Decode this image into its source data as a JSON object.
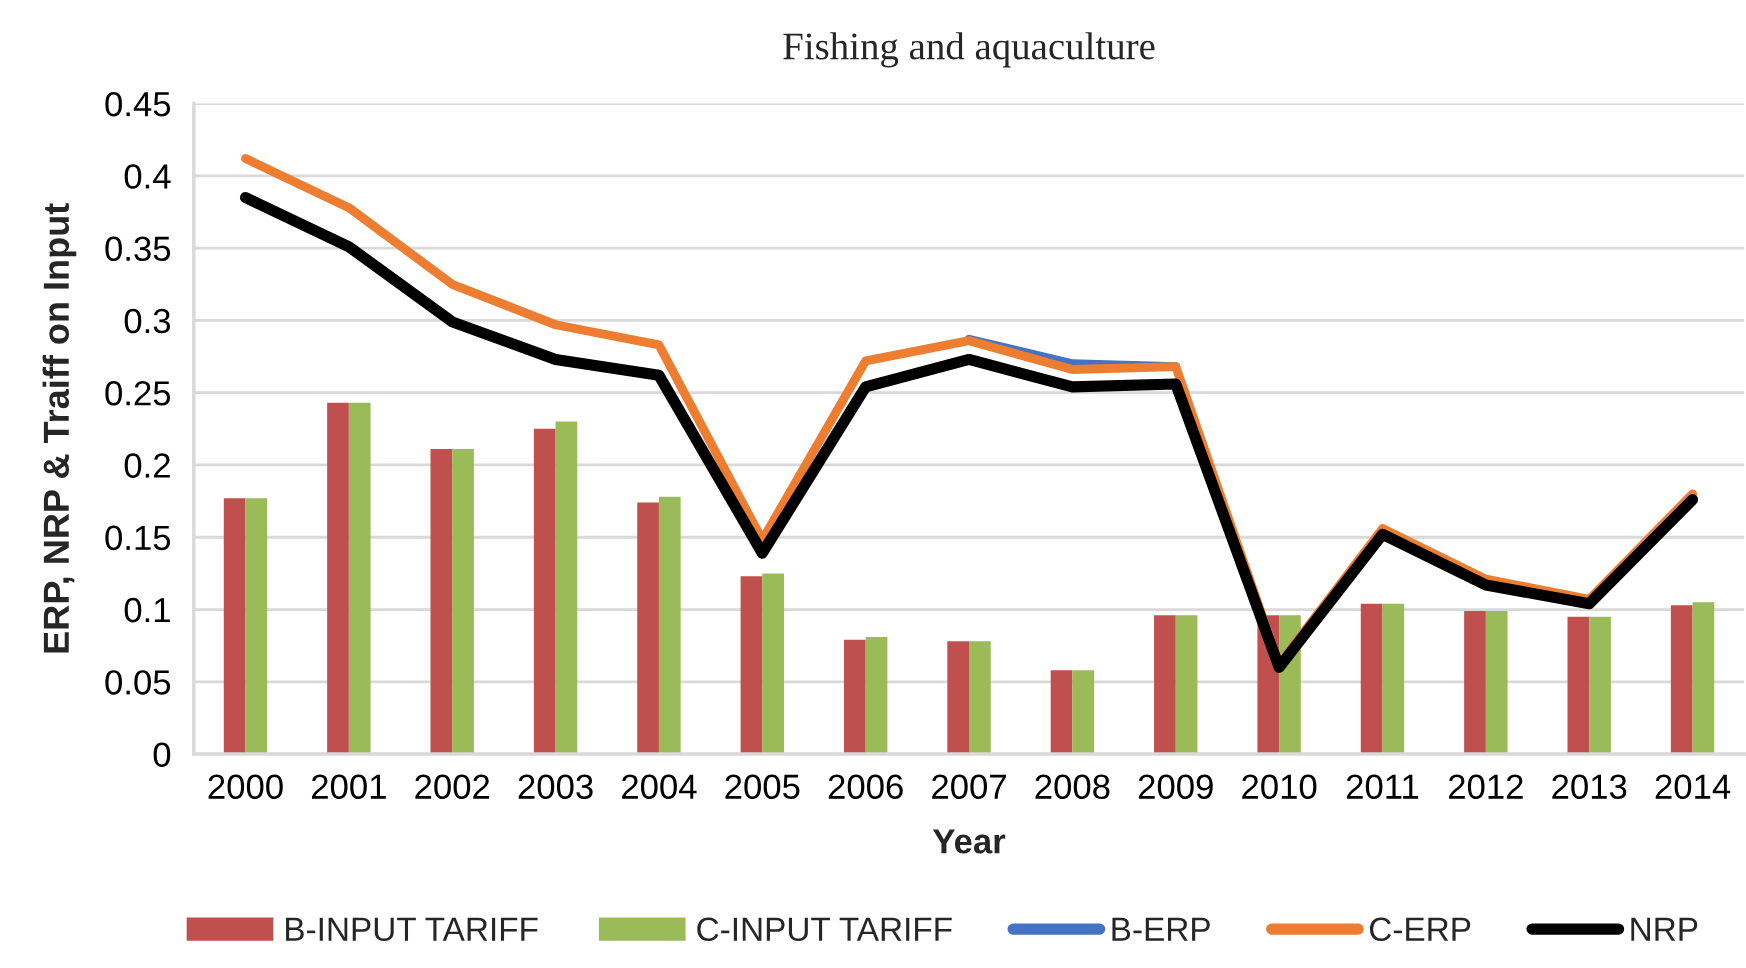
{
  "chart_data": {
    "type": "bar",
    "title": "Fishing and aquaculture",
    "xlabel": "Year",
    "ylabel": "ERP, NRP & Traiff on Input",
    "categories": [
      "2000",
      "2001",
      "2002",
      "2003",
      "2004",
      "2005",
      "2006",
      "2007",
      "2008",
      "2009",
      "2010",
      "2011",
      "2012",
      "2013",
      "2014"
    ],
    "series": [
      {
        "name": "B-INPUT TARIFF",
        "color": "#c0504d",
        "values": [
          0.177,
          0.243,
          0.211,
          0.225,
          0.174,
          0.123,
          0.079,
          0.078,
          0.058,
          0.096,
          0.096,
          0.104,
          0.099,
          0.095,
          0.103
        ]
      },
      {
        "name": "C-INPUT TARIFF",
        "color": "#9bbb59",
        "values": [
          0.177,
          0.243,
          0.211,
          0.23,
          0.178,
          0.125,
          0.081,
          0.078,
          0.058,
          0.096,
          0.096,
          0.104,
          0.099,
          0.095,
          0.105
        ]
      },
      {
        "name": "B-ERP",
        "type": "line",
        "color": "#4472c4",
        "values": [
          null,
          null,
          null,
          null,
          null,
          null,
          null,
          0.287,
          0.27,
          0.268,
          null,
          null,
          null,
          null,
          null
        ]
      },
      {
        "name": "C-ERP",
        "type": "line",
        "color": "#ed7d31",
        "values": [
          0.412,
          0.378,
          0.325,
          0.297,
          0.283,
          0.148,
          0.272,
          0.286,
          0.266,
          0.268,
          0.062,
          0.156,
          0.121,
          0.107,
          0.18
        ]
      },
      {
        "name": "NRP",
        "type": "line",
        "color": "#000000",
        "values": [
          0.385,
          0.351,
          0.299,
          0.273,
          0.262,
          0.139,
          0.254,
          0.273,
          0.254,
          0.256,
          0.06,
          0.152,
          0.117,
          0.104,
          0.176
        ]
      }
    ],
    "ylim": [
      0,
      0.45
    ],
    "yticks": [
      0,
      0.05,
      0.1,
      0.15,
      0.2,
      0.25,
      0.3,
      0.35,
      0.4,
      0.45
    ],
    "grid": "y",
    "legend": "bottom"
  }
}
